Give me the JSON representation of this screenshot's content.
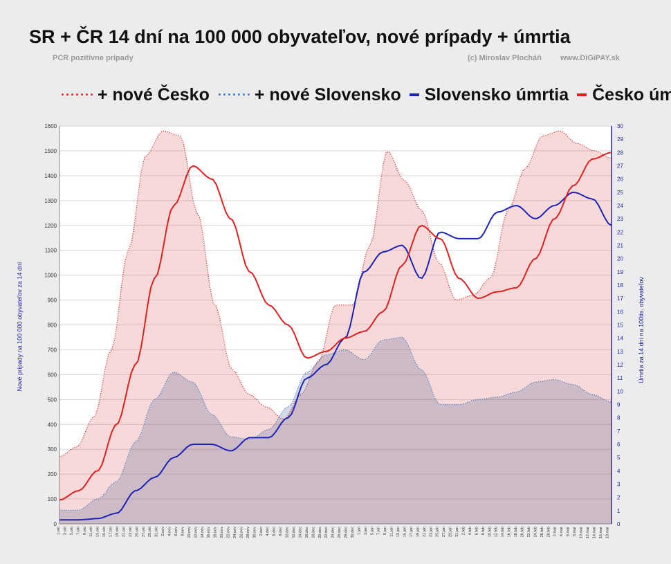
{
  "header": {
    "title": "SR + ČR 14 dní na 100 000 obyvateľov,  nové prípady + úmrtia",
    "subtitle_left": "PCR pozitívne prípady",
    "subtitle_author": "(c) Miroslav Plocháň",
    "subtitle_site": "www.DiGiPAY.sk"
  },
  "legend": [
    {
      "label": "+ nové Česko",
      "style": "dotted",
      "color": "#e02020"
    },
    {
      "label": "+ nové Slovensko",
      "style": "dotted",
      "color": "#3a78c2"
    },
    {
      "label": "Slovensko úmrtia",
      "style": "solid",
      "color": "#1a22b8"
    },
    {
      "label": "Česko úmrtia",
      "style": "solid",
      "color": "#e02020"
    }
  ],
  "chart_data": {
    "type": "area",
    "ylabel_left": "Nové prípady na 100 000 obyvateľov za 14 dní",
    "ylabel_right": "Úmrtia za 14 dní na 100tis. obyvateľov",
    "ylim_left": [
      0,
      1600
    ],
    "ylim_right": [
      0,
      30
    ],
    "y_ticks_left": [
      0,
      100,
      200,
      300,
      400,
      500,
      600,
      700,
      800,
      900,
      1000,
      1100,
      1200,
      1300,
      1400,
      1500,
      1600
    ],
    "y_ticks_right": [
      0,
      1,
      2,
      3,
      4,
      5,
      6,
      7,
      8,
      9,
      10,
      11,
      12,
      13,
      14,
      15,
      16,
      17,
      18,
      19,
      20,
      21,
      22,
      23,
      24,
      25,
      26,
      27,
      28,
      29,
      30
    ],
    "x_tick_labels": [
      "1.okt",
      "3.okt",
      "5.okt",
      "7.okt",
      "9.okt",
      "11.okt",
      "13.okt",
      "15.okt",
      "17.okt",
      "19.okt",
      "21.okt",
      "23.okt",
      "25.okt",
      "27.okt",
      "29.okt",
      "31.okt",
      "2.nov",
      "4.nov",
      "6.nov",
      "8.nov",
      "10.nov",
      "12.nov",
      "14.nov",
      "16.nov",
      "18.nov",
      "20.nov",
      "22.nov",
      "24.nov",
      "26.nov",
      "28.nov",
      "30.nov",
      "2.dec",
      "4.dec",
      "6.dec",
      "8.dec",
      "10.dec",
      "12.dec",
      "14.dec",
      "16.dec",
      "18.dec",
      "20.dec",
      "22.dec",
      "24.dec",
      "26.dec",
      "28.dec",
      "30.dec",
      "1.jan",
      "3.jan",
      "5.jan",
      "7.jan",
      "9.jan",
      "11.jan",
      "13.jan",
      "15.jan",
      "17.jan",
      "19.jan",
      "21.jan",
      "23.jan",
      "25.jan",
      "27.jan",
      "29.jan",
      "31.jan",
      "2.feb",
      "4.feb",
      "6.feb",
      "8.feb",
      "10.feb",
      "12.feb",
      "14.feb",
      "16.feb",
      "18.feb",
      "20.feb",
      "22.feb",
      "24.feb",
      "26.feb",
      "28.feb",
      "2.mar",
      "4.mar",
      "6.mar",
      "8.mar",
      "10.mar",
      "12.mar",
      "14.mar",
      "16.mar",
      "18.mar"
    ],
    "x_anchor_index": [
      0,
      10,
      20,
      30,
      40,
      50,
      60,
      70,
      80,
      90,
      100,
      110,
      120,
      130,
      140,
      150,
      160,
      169
    ],
    "series": [
      {
        "name": "+ nové Česko",
        "axis": "left",
        "anchors": [
          270,
          310,
          430,
          700,
          1100,
          1480,
          1580,
          1560,
          1250,
          880,
          620,
          520,
          470,
          420,
          520,
          650,
          880,
          880,
          1120,
          1500,
          1380,
          1260,
          1050,
          900,
          920,
          990,
          1260,
          1430,
          1560,
          1580,
          1530,
          1500,
          1470
        ]
      },
      {
        "name": "+ nové Slovensko",
        "axis": "left",
        "anchors": [
          55,
          55,
          100,
          170,
          330,
          500,
          610,
          570,
          440,
          350,
          340,
          380,
          470,
          610,
          680,
          700,
          660,
          740,
          750,
          620,
          480,
          480,
          500,
          510,
          530,
          570,
          580,
          560,
          520,
          490
        ]
      },
      {
        "name": "Slovensko úmrtia",
        "axis": "right",
        "anchors": [
          0.3,
          0.3,
          0.4,
          0.8,
          2.5,
          3.5,
          5.0,
          6.0,
          6.0,
          5.5,
          6.5,
          6.5,
          8.0,
          11.0,
          12.0,
          14.0,
          19.0,
          20.5,
          21.0,
          18.5,
          22.0,
          21.5,
          21.5,
          23.5,
          24.0,
          23.0,
          24.0,
          25.0,
          24.5,
          22.5
        ]
      },
      {
        "name": "Česko úmrtia",
        "axis": "right",
        "anchors": [
          1.8,
          2.5,
          4.0,
          7.5,
          12.0,
          18.5,
          24.0,
          27.0,
          26.0,
          23.0,
          19.0,
          16.5,
          15.0,
          12.5,
          13.0,
          14.0,
          14.5,
          16.0,
          19.5,
          22.5,
          21.5,
          18.5,
          17.0,
          17.5,
          17.8,
          20.0,
          23.0,
          25.5,
          27.5,
          28.0
        ]
      }
    ]
  }
}
